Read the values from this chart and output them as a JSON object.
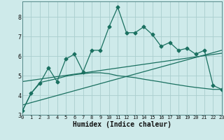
{
  "xlabel": "Humidex (Indice chaleur)",
  "background_color": "#ceeaea",
  "grid_color": "#aacece",
  "line_color": "#1a7060",
  "x_values": [
    0,
    1,
    2,
    3,
    4,
    5,
    6,
    7,
    8,
    9,
    10,
    11,
    12,
    13,
    14,
    15,
    16,
    17,
    18,
    19,
    20,
    21,
    22,
    23
  ],
  "series1": [
    3.2,
    4.1,
    4.6,
    5.4,
    4.7,
    5.85,
    6.1,
    5.2,
    6.3,
    6.3,
    7.5,
    8.5,
    7.2,
    7.2,
    7.5,
    7.1,
    6.5,
    6.7,
    6.3,
    6.4,
    6.1,
    6.3,
    4.5,
    4.3
  ],
  "trend1_x": [
    0,
    23
  ],
  "trend1_y": [
    3.5,
    6.3
  ],
  "trend2_x": [
    0,
    23
  ],
  "trend2_y": [
    4.7,
    6.15
  ],
  "curve_x": [
    0,
    1,
    2,
    3,
    4,
    5,
    6,
    7,
    8,
    9,
    10,
    11,
    12,
    13,
    14,
    15,
    16,
    17,
    18,
    19,
    20,
    21,
    22,
    23
  ],
  "curve_y": [
    3.2,
    4.1,
    4.65,
    4.75,
    4.85,
    4.97,
    5.05,
    5.1,
    5.15,
    5.15,
    5.1,
    5.0,
    4.95,
    4.9,
    4.82,
    4.75,
    4.68,
    4.6,
    4.53,
    4.46,
    4.4,
    4.35,
    4.3,
    4.3
  ],
  "ylim": [
    3.0,
    8.8
  ],
  "xlim": [
    0,
    23
  ],
  "yticks": [
    3,
    4,
    5,
    6,
    7,
    8
  ],
  "xticks": [
    0,
    1,
    2,
    3,
    4,
    5,
    6,
    7,
    8,
    9,
    10,
    11,
    12,
    13,
    14,
    15,
    16,
    17,
    18,
    19,
    20,
    21,
    22,
    23
  ]
}
